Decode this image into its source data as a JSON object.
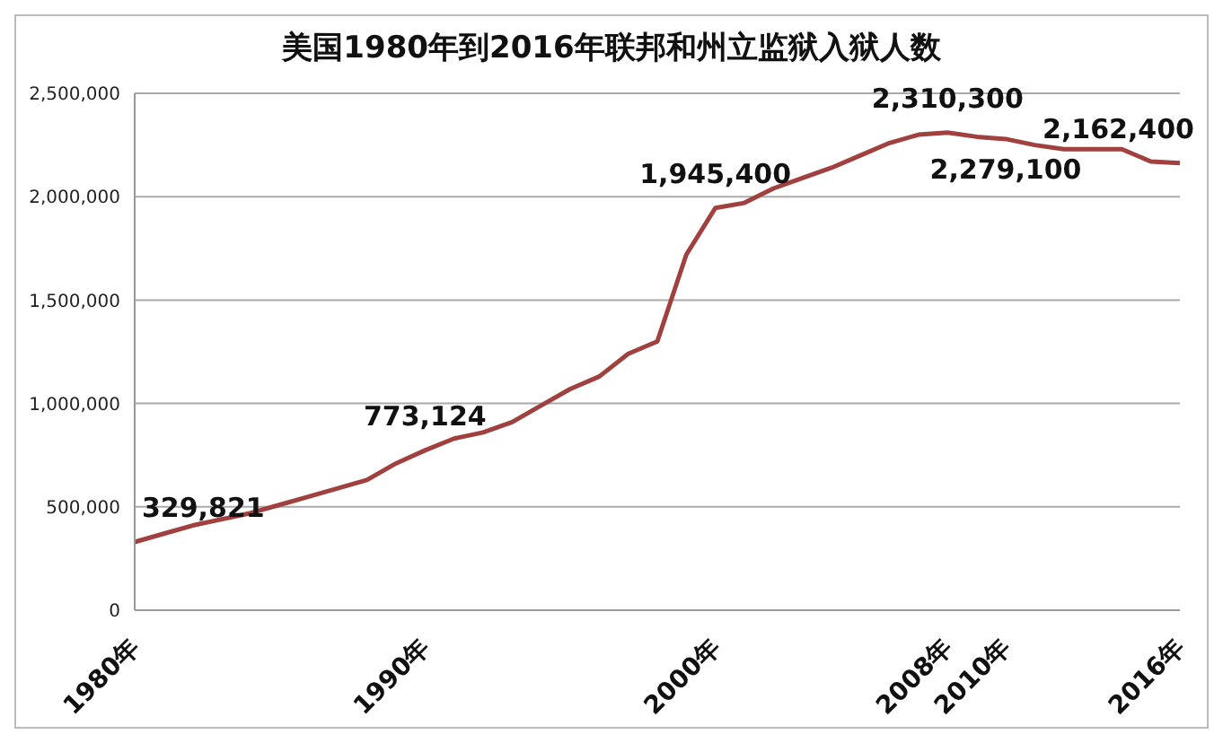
{
  "chart_data": {
    "type": "line",
    "title": "美国1980年到2016年联邦和州立监狱入狱人数",
    "categories": [
      "1980年",
      null,
      null,
      null,
      null,
      null,
      null,
      null,
      null,
      null,
      "1990年",
      null,
      null,
      null,
      null,
      null,
      null,
      null,
      null,
      null,
      "2000年",
      null,
      null,
      null,
      null,
      null,
      null,
      null,
      "2008年",
      null,
      "2010年",
      null,
      null,
      null,
      null,
      null,
      "2016年"
    ],
    "series": [
      {
        "color": "#a0403f",
        "values": [
          329821,
          370000,
          410000,
          440000,
          470000,
          510000,
          550000,
          590000,
          630000,
          710000,
          773124,
          830000,
          860000,
          910000,
          990000,
          1070000,
          1130000,
          1240000,
          1300000,
          1720000,
          1945400,
          1970000,
          2040000,
          2090000,
          2140000,
          2200000,
          2260000,
          2300000,
          2310300,
          2290000,
          2279100,
          2250000,
          2230000,
          2230000,
          2230000,
          2170000,
          2162400
        ],
        "value_labels": [
          "329,821",
          null,
          null,
          null,
          null,
          null,
          null,
          null,
          null,
          null,
          "773,124",
          null,
          null,
          null,
          null,
          null,
          null,
          null,
          null,
          null,
          "1,945,400",
          null,
          null,
          null,
          null,
          null,
          null,
          null,
          "2,310,300",
          null,
          "2,279,100",
          null,
          null,
          null,
          null,
          null,
          "2,162,400"
        ]
      }
    ],
    "ylim": [
      0,
      2500000
    ],
    "yticks": [
      0,
      {
        "value": 500000,
        "label": "500,000"
      },
      {
        "value": 1000000,
        "label": "1,000,000"
      },
      {
        "value": 1500000,
        "label": "1,500,000"
      },
      {
        "value": 2000000,
        "label": "2,000,000"
      },
      {
        "value": 2500000,
        "label": "2,500,000"
      }
    ],
    "grid": "y",
    "legend": false,
    "marker": "none",
    "line_style": "solid"
  }
}
